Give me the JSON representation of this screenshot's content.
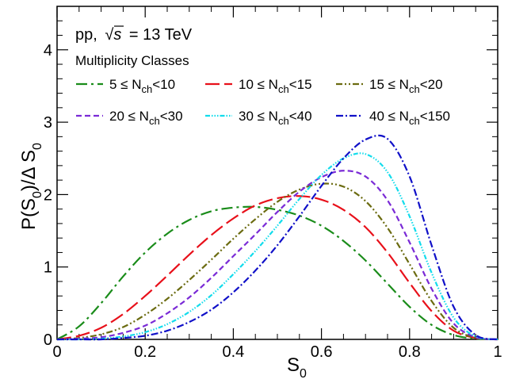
{
  "chart_data": {
    "type": "line",
    "xlabel": "S",
    "xlabel_sub": "0",
    "ylabel": "P(S )/Δ S",
    "ylabel_parts": [
      "P(S",
      "0",
      ")/Δ S",
      "0"
    ],
    "xlim": [
      0,
      1
    ],
    "ylim": [
      0,
      4.6
    ],
    "xticks": [
      0,
      0.2,
      0.4,
      0.6,
      0.8,
      1
    ],
    "xtick_labels": [
      "0",
      "0.2",
      "0.4",
      "0.6",
      "0.8",
      "1"
    ],
    "yticks": [
      0,
      1,
      2,
      3,
      4
    ],
    "ytick_labels": [
      "0",
      "1",
      "2",
      "3",
      "4"
    ],
    "grid": false,
    "annotations": {
      "system": "pp, √s = 13 TeV",
      "system_prefix": "pp,",
      "system_sqrt": "√",
      "system_s": "s",
      "system_suffix": "= 13 TeV",
      "legend_title": "Multiplicity Classes"
    },
    "legend_placement": "top",
    "series": [
      {
        "name": "5 ≤ N_ch<10",
        "label_lo": "5 ≤ N",
        "label_sub": "ch",
        "label_hi": "<10",
        "color": "#1a8c1a",
        "dash": "14,5,3,5",
        "x": [
          0.0,
          0.05,
          0.1,
          0.15,
          0.2,
          0.25,
          0.3,
          0.35,
          0.4,
          0.45,
          0.5,
          0.55,
          0.6,
          0.65,
          0.7,
          0.75,
          0.8,
          0.85,
          0.9,
          0.95,
          1.0
        ],
        "y": [
          0.0,
          0.18,
          0.5,
          0.87,
          1.2,
          1.46,
          1.65,
          1.77,
          1.82,
          1.83,
          1.79,
          1.71,
          1.57,
          1.36,
          1.09,
          0.77,
          0.45,
          0.2,
          0.06,
          0.01,
          0.0
        ]
      },
      {
        "name": "10 ≤ N_ch<15",
        "label_lo": "10 ≤ N",
        "label_sub": "ch",
        "label_hi": "<15",
        "color": "#e8101a",
        "dash": "18,6",
        "x": [
          0.0,
          0.05,
          0.1,
          0.15,
          0.2,
          0.25,
          0.3,
          0.35,
          0.4,
          0.45,
          0.5,
          0.55,
          0.6,
          0.65,
          0.7,
          0.75,
          0.8,
          0.85,
          0.9,
          0.95,
          1.0
        ],
        "y": [
          0.0,
          0.05,
          0.16,
          0.35,
          0.6,
          0.88,
          1.17,
          1.44,
          1.67,
          1.85,
          1.95,
          1.98,
          1.93,
          1.79,
          1.55,
          1.2,
          0.78,
          0.39,
          0.12,
          0.02,
          0.0
        ]
      },
      {
        "name": "15 ≤ N_ch<20",
        "label_lo": "15 ≤ N",
        "label_sub": "ch",
        "label_hi": "<20",
        "color": "#6b6b10",
        "dash": "8,3,2,3,2,3",
        "x": [
          0.0,
          0.05,
          0.1,
          0.15,
          0.2,
          0.25,
          0.3,
          0.35,
          0.4,
          0.45,
          0.5,
          0.55,
          0.6,
          0.65,
          0.7,
          0.75,
          0.8,
          0.85,
          0.9,
          0.95,
          1.0
        ],
        "y": [
          0.0,
          0.02,
          0.07,
          0.17,
          0.34,
          0.56,
          0.82,
          1.1,
          1.39,
          1.66,
          1.9,
          2.07,
          2.15,
          2.11,
          1.91,
          1.54,
          1.04,
          0.53,
          0.16,
          0.02,
          0.0
        ]
      },
      {
        "name": "20 ≤ N_ch<30",
        "label_lo": "20 ≤ N",
        "label_sub": "ch",
        "label_hi": "<30",
        "color": "#7a2ad6",
        "dash": "7,4",
        "x": [
          0.0,
          0.05,
          0.1,
          0.15,
          0.2,
          0.25,
          0.3,
          0.35,
          0.4,
          0.45,
          0.5,
          0.55,
          0.6,
          0.65,
          0.7,
          0.75,
          0.8,
          0.85,
          0.9,
          0.95,
          1.0
        ],
        "y": [
          0.0,
          0.01,
          0.03,
          0.09,
          0.19,
          0.36,
          0.58,
          0.85,
          1.15,
          1.45,
          1.76,
          2.04,
          2.24,
          2.33,
          2.25,
          1.92,
          1.34,
          0.7,
          0.22,
          0.03,
          0.0
        ]
      },
      {
        "name": "30 ≤ N_ch<40",
        "label_lo": "30 ≤ N",
        "label_sub": "ch",
        "label_hi": "<40",
        "color": "#12dcec",
        "dash": "6,2,1.5,2,1.5,2,1.5,2",
        "x": [
          0.0,
          0.05,
          0.1,
          0.15,
          0.2,
          0.25,
          0.3,
          0.35,
          0.4,
          0.45,
          0.5,
          0.55,
          0.6,
          0.65,
          0.7,
          0.75,
          0.8,
          0.85,
          0.9,
          0.95,
          1.0
        ],
        "y": [
          0.0,
          0.0,
          0.01,
          0.04,
          0.1,
          0.21,
          0.38,
          0.61,
          0.9,
          1.22,
          1.57,
          1.94,
          2.27,
          2.5,
          2.56,
          2.31,
          1.7,
          0.92,
          0.3,
          0.04,
          0.0
        ]
      },
      {
        "name": "40 ≤ N_ch<150",
        "label_lo": "40 ≤ N",
        "label_sub": "ch",
        "label_hi": "<150",
        "color": "#1010c8",
        "dash": "9,3,2,3",
        "x": [
          0.0,
          0.05,
          0.1,
          0.15,
          0.2,
          0.25,
          0.3,
          0.35,
          0.4,
          0.45,
          0.5,
          0.55,
          0.6,
          0.65,
          0.7,
          0.75,
          0.8,
          0.85,
          0.9,
          0.95,
          1.0
        ],
        "y": [
          0.0,
          0.0,
          0.0,
          0.02,
          0.05,
          0.12,
          0.24,
          0.41,
          0.65,
          0.95,
          1.3,
          1.7,
          2.12,
          2.5,
          2.76,
          2.77,
          2.25,
          1.3,
          0.45,
          0.06,
          0.0
        ]
      }
    ]
  }
}
